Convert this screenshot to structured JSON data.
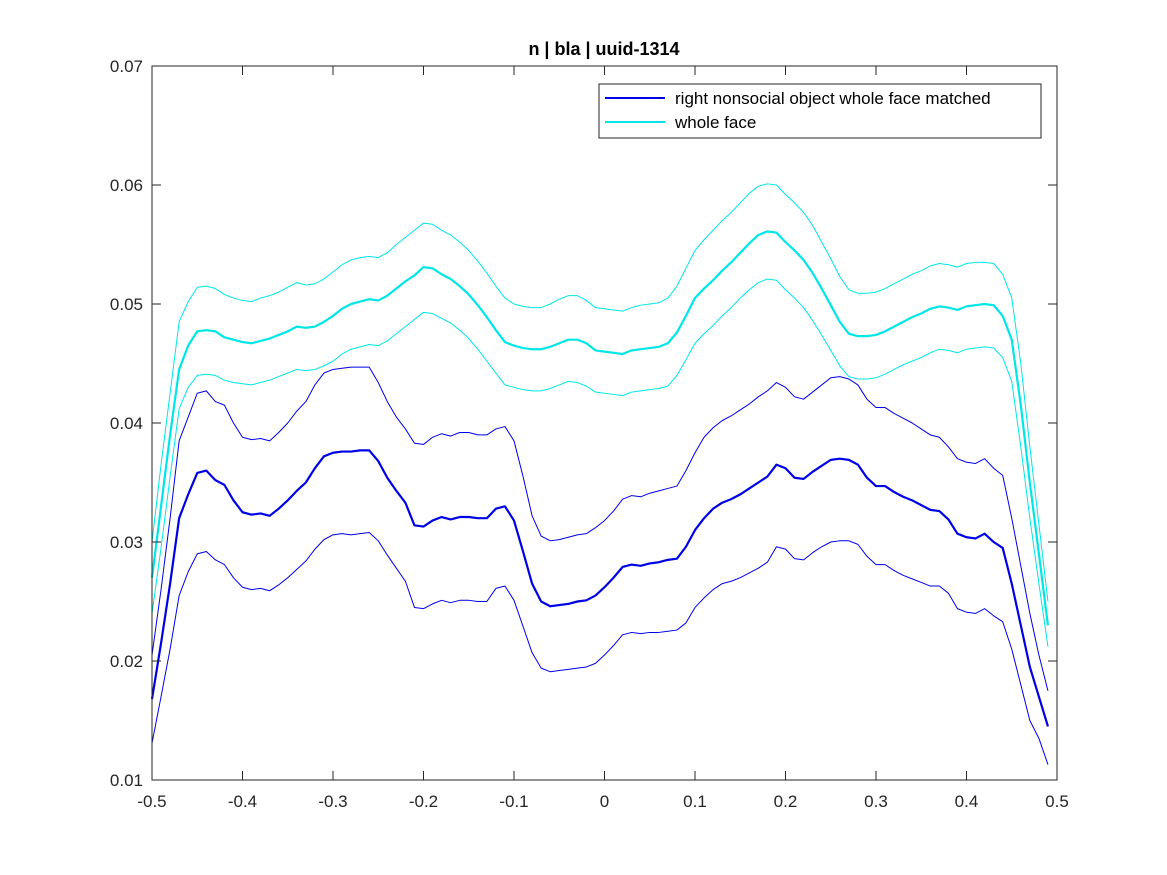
{
  "chart_data": {
    "type": "line",
    "title": "n | bla | uuid-1314",
    "xlabel": "",
    "ylabel": "",
    "xlim": [
      -0.5,
      0.5
    ],
    "ylim": [
      0.01,
      0.07
    ],
    "xticks": [
      -0.5,
      -0.4,
      -0.3,
      -0.2,
      -0.1,
      0,
      0.1,
      0.2,
      0.3,
      0.4,
      0.5
    ],
    "xtick_labels": [
      "-0.5",
      "-0.4",
      "-0.3",
      "-0.2",
      "-0.1",
      "0",
      "0.1",
      "0.2",
      "0.3",
      "0.4",
      "0.5"
    ],
    "yticks": [
      0.01,
      0.02,
      0.03,
      0.04,
      0.05,
      0.06,
      0.07
    ],
    "ytick_labels": [
      "0.01",
      "0.02",
      "0.03",
      "0.04",
      "0.05",
      "0.06",
      "0.07"
    ],
    "grid": false,
    "legend": {
      "placement": "top-right"
    },
    "x": [
      -0.5,
      -0.49,
      -0.48,
      -0.47,
      -0.46,
      -0.45,
      -0.44,
      -0.43,
      -0.42,
      -0.41,
      -0.4,
      -0.39,
      -0.38,
      -0.37,
      -0.36,
      -0.35,
      -0.34,
      -0.33,
      -0.32,
      -0.31,
      -0.3,
      -0.29,
      -0.28,
      -0.27,
      -0.26,
      -0.25,
      -0.24,
      -0.23,
      -0.22,
      -0.21,
      -0.2,
      -0.19,
      -0.18,
      -0.17,
      -0.16,
      -0.15,
      -0.14,
      -0.13,
      -0.12,
      -0.11,
      -0.1,
      -0.09,
      -0.08,
      -0.07,
      -0.06,
      -0.05,
      -0.04,
      -0.03,
      -0.02,
      -0.01,
      0,
      0.01,
      0.02,
      0.03,
      0.04,
      0.05,
      0.06,
      0.07,
      0.08,
      0.09,
      0.1,
      0.11,
      0.12,
      0.13,
      0.14,
      0.15,
      0.16,
      0.17,
      0.18,
      0.19,
      0.2,
      0.21,
      0.22,
      0.23,
      0.24,
      0.25,
      0.26,
      0.27,
      0.28,
      0.29,
      0.3,
      0.31,
      0.32,
      0.33,
      0.34,
      0.35,
      0.36,
      0.37,
      0.38,
      0.39,
      0.4,
      0.41,
      0.42,
      0.43,
      0.44,
      0.45,
      0.46,
      0.47,
      0.48,
      0.49
    ],
    "series": [
      {
        "name": "right nonsocial object whole face matched",
        "color": "#0000e6",
        "mean": [
          0.0168,
          0.0215,
          0.0265,
          0.032,
          0.034,
          0.0358,
          0.036,
          0.0352,
          0.0348,
          0.0335,
          0.0325,
          0.0323,
          0.0324,
          0.0322,
          0.0328,
          0.0335,
          0.0343,
          0.035,
          0.0362,
          0.0372,
          0.0375,
          0.0376,
          0.0376,
          0.0377,
          0.0377,
          0.0368,
          0.0354,
          0.0343,
          0.0333,
          0.0314,
          0.0313,
          0.0318,
          0.0321,
          0.0319,
          0.0321,
          0.0321,
          0.032,
          0.032,
          0.0328,
          0.033,
          0.0318,
          0.0292,
          0.0265,
          0.025,
          0.0246,
          0.0247,
          0.0248,
          0.025,
          0.0251,
          0.0255,
          0.0262,
          0.027,
          0.0279,
          0.0281,
          0.028,
          0.0282,
          0.0283,
          0.0285,
          0.0286,
          0.0296,
          0.031,
          0.032,
          0.0328,
          0.0333,
          0.0336,
          0.034,
          0.0345,
          0.035,
          0.0355,
          0.0365,
          0.0362,
          0.0354,
          0.0353,
          0.0359,
          0.0364,
          0.0369,
          0.037,
          0.0369,
          0.0365,
          0.0354,
          0.0347,
          0.0347,
          0.0342,
          0.0338,
          0.0335,
          0.0331,
          0.0327,
          0.0326,
          0.0319,
          0.0307,
          0.0304,
          0.0303,
          0.0307,
          0.03,
          0.0295,
          0.0265,
          0.023,
          0.0195,
          0.017,
          0.0145
        ],
        "upper": [
          0.0205,
          0.026,
          0.032,
          0.0385,
          0.0405,
          0.0425,
          0.0427,
          0.0418,
          0.0415,
          0.04,
          0.0388,
          0.0386,
          0.0387,
          0.0385,
          0.0392,
          0.04,
          0.041,
          0.0418,
          0.0432,
          0.0442,
          0.0445,
          0.0446,
          0.0447,
          0.0447,
          0.0447,
          0.0434,
          0.0418,
          0.0405,
          0.0395,
          0.0383,
          0.0382,
          0.0388,
          0.0391,
          0.0389,
          0.0392,
          0.0392,
          0.039,
          0.039,
          0.0395,
          0.0397,
          0.0385,
          0.0355,
          0.0322,
          0.0305,
          0.0301,
          0.0302,
          0.0304,
          0.0306,
          0.0307,
          0.0312,
          0.0318,
          0.0326,
          0.0336,
          0.0339,
          0.0338,
          0.0341,
          0.0343,
          0.0345,
          0.0347,
          0.036,
          0.0375,
          0.0388,
          0.0396,
          0.0402,
          0.0406,
          0.0411,
          0.0416,
          0.0422,
          0.0427,
          0.0434,
          0.043,
          0.0422,
          0.042,
          0.0426,
          0.0432,
          0.0438,
          0.0439,
          0.0437,
          0.0432,
          0.042,
          0.0413,
          0.0413,
          0.0408,
          0.0404,
          0.04,
          0.0395,
          0.039,
          0.0388,
          0.038,
          0.037,
          0.0367,
          0.0366,
          0.037,
          0.0362,
          0.0356,
          0.032,
          0.028,
          0.024,
          0.0205,
          0.0175
        ],
        "lower": [
          0.0131,
          0.017,
          0.021,
          0.0255,
          0.0275,
          0.029,
          0.0292,
          0.0285,
          0.0281,
          0.027,
          0.0262,
          0.026,
          0.0261,
          0.0259,
          0.0264,
          0.027,
          0.0277,
          0.0284,
          0.0294,
          0.0302,
          0.0306,
          0.0307,
          0.0306,
          0.0307,
          0.0308,
          0.0301,
          0.0289,
          0.0278,
          0.0267,
          0.0245,
          0.0244,
          0.0248,
          0.0251,
          0.0249,
          0.0251,
          0.0251,
          0.025,
          0.025,
          0.0261,
          0.0263,
          0.0251,
          0.0229,
          0.0207,
          0.0194,
          0.0191,
          0.0192,
          0.0193,
          0.0194,
          0.0195,
          0.0198,
          0.0205,
          0.0213,
          0.0222,
          0.0224,
          0.0223,
          0.0224,
          0.0224,
          0.0225,
          0.0226,
          0.0232,
          0.0245,
          0.0253,
          0.026,
          0.0265,
          0.0267,
          0.027,
          0.0274,
          0.0278,
          0.0283,
          0.0296,
          0.0294,
          0.0286,
          0.0285,
          0.0291,
          0.0296,
          0.03,
          0.0301,
          0.0301,
          0.0298,
          0.0288,
          0.0281,
          0.0281,
          0.0276,
          0.0272,
          0.0269,
          0.0266,
          0.0263,
          0.0263,
          0.0257,
          0.0244,
          0.0241,
          0.024,
          0.0244,
          0.0238,
          0.0233,
          0.021,
          0.018,
          0.015,
          0.0135,
          0.0113
        ]
      },
      {
        "name": "whole face",
        "color": "#00e6e6",
        "mean": [
          0.027,
          0.033,
          0.039,
          0.0445,
          0.0465,
          0.0477,
          0.0478,
          0.0477,
          0.0472,
          0.047,
          0.0468,
          0.0467,
          0.0469,
          0.0471,
          0.0474,
          0.0477,
          0.0481,
          0.048,
          0.0481,
          0.0485,
          0.049,
          0.0496,
          0.05,
          0.0502,
          0.0504,
          0.0503,
          0.0507,
          0.0513,
          0.0519,
          0.0524,
          0.0531,
          0.053,
          0.0525,
          0.0521,
          0.0515,
          0.0508,
          0.0499,
          0.0489,
          0.0478,
          0.0468,
          0.0465,
          0.0463,
          0.0462,
          0.0462,
          0.0464,
          0.0467,
          0.047,
          0.047,
          0.0467,
          0.0461,
          0.046,
          0.0459,
          0.0458,
          0.0461,
          0.0462,
          0.0463,
          0.0464,
          0.0467,
          0.0476,
          0.049,
          0.0505,
          0.0513,
          0.052,
          0.0528,
          0.0535,
          0.0543,
          0.0551,
          0.0558,
          0.0561,
          0.056,
          0.0552,
          0.0545,
          0.0537,
          0.0526,
          0.0513,
          0.0499,
          0.0485,
          0.0475,
          0.0473,
          0.0473,
          0.0474,
          0.0477,
          0.0481,
          0.0485,
          0.0489,
          0.0492,
          0.0496,
          0.0498,
          0.0497,
          0.0495,
          0.0498,
          0.0499,
          0.05,
          0.0499,
          0.049,
          0.047,
          0.0415,
          0.035,
          0.029,
          0.023
        ],
        "upper": [
          0.03,
          0.0365,
          0.0425,
          0.0485,
          0.0502,
          0.0514,
          0.0515,
          0.0513,
          0.0508,
          0.0505,
          0.0503,
          0.0502,
          0.0505,
          0.0507,
          0.051,
          0.0514,
          0.0518,
          0.0516,
          0.0517,
          0.0521,
          0.0527,
          0.0533,
          0.0537,
          0.0539,
          0.054,
          0.0539,
          0.0543,
          0.055,
          0.0556,
          0.0562,
          0.0568,
          0.0567,
          0.0562,
          0.0558,
          0.0552,
          0.0545,
          0.0536,
          0.0526,
          0.0515,
          0.0505,
          0.05,
          0.0498,
          0.0497,
          0.0497,
          0.05,
          0.0504,
          0.0507,
          0.0507,
          0.0503,
          0.0497,
          0.0496,
          0.0495,
          0.0494,
          0.0497,
          0.0499,
          0.05,
          0.0501,
          0.0505,
          0.0515,
          0.053,
          0.0545,
          0.0554,
          0.0562,
          0.057,
          0.0577,
          0.0585,
          0.0593,
          0.0599,
          0.0601,
          0.06,
          0.0592,
          0.0585,
          0.0577,
          0.0566,
          0.0552,
          0.0538,
          0.0523,
          0.0512,
          0.0509,
          0.0509,
          0.051,
          0.0513,
          0.0517,
          0.0521,
          0.0525,
          0.0528,
          0.0532,
          0.0534,
          0.0533,
          0.0531,
          0.0534,
          0.0535,
          0.0535,
          0.0534,
          0.0525,
          0.0505,
          0.045,
          0.038,
          0.0315,
          0.025
        ],
        "lower": [
          0.024,
          0.0295,
          0.0355,
          0.0412,
          0.043,
          0.044,
          0.0441,
          0.044,
          0.0436,
          0.0434,
          0.0433,
          0.0432,
          0.0434,
          0.0436,
          0.0439,
          0.0442,
          0.0445,
          0.0444,
          0.0445,
          0.0448,
          0.0452,
          0.0458,
          0.0462,
          0.0464,
          0.0466,
          0.0465,
          0.0469,
          0.0475,
          0.0481,
          0.0487,
          0.0493,
          0.0492,
          0.0488,
          0.0484,
          0.0478,
          0.0471,
          0.0462,
          0.0452,
          0.0442,
          0.0432,
          0.043,
          0.0428,
          0.0427,
          0.0427,
          0.0429,
          0.0432,
          0.0435,
          0.0434,
          0.0431,
          0.0426,
          0.0425,
          0.0424,
          0.0423,
          0.0426,
          0.0427,
          0.0428,
          0.0429,
          0.0431,
          0.044,
          0.0453,
          0.0467,
          0.0475,
          0.0482,
          0.049,
          0.0497,
          0.0505,
          0.0512,
          0.0518,
          0.0521,
          0.052,
          0.0512,
          0.0505,
          0.0497,
          0.0486,
          0.0474,
          0.0461,
          0.0448,
          0.0439,
          0.0437,
          0.0437,
          0.0438,
          0.0441,
          0.0445,
          0.0449,
          0.0452,
          0.0455,
          0.0459,
          0.0462,
          0.0461,
          0.0459,
          0.0462,
          0.0463,
          0.0464,
          0.0463,
          0.0455,
          0.0435,
          0.038,
          0.032,
          0.0265,
          0.0212
        ]
      }
    ]
  }
}
